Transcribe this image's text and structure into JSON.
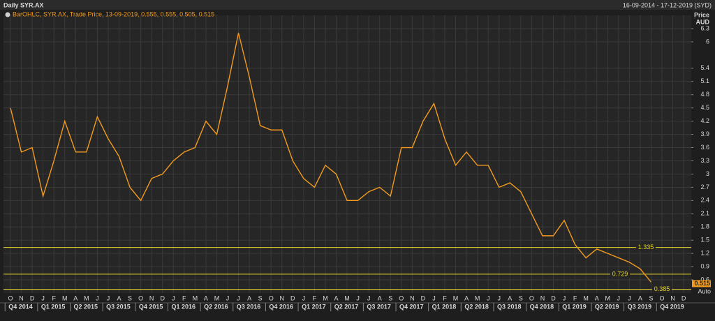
{
  "chart_data": {
    "type": "line",
    "title": "Daily SYR.AX",
    "date_range": "16-09-2014 - 17-12-2019 (SYD)",
    "legend_text": "BarOHLC, SYR.AX, Trade Price, 13-09-2019, 0.555, 0.555, 0.505, 0.515",
    "y_label": "Price",
    "y_unit": "AUD",
    "scale_mode": "Auto",
    "categories": [
      "O",
      "N",
      "D",
      "J",
      "F",
      "M",
      "A",
      "M",
      "J",
      "J",
      "A",
      "S",
      "O",
      "N",
      "D",
      "J",
      "F",
      "M",
      "A",
      "M",
      "J",
      "J",
      "A",
      "S",
      "O",
      "N",
      "D",
      "J",
      "F",
      "M",
      "A",
      "M",
      "J",
      "J",
      "A",
      "S",
      "O",
      "N",
      "D",
      "J",
      "F",
      "M",
      "A",
      "M",
      "J",
      "J",
      "A",
      "S",
      "O",
      "N",
      "D",
      "J",
      "F",
      "M",
      "A",
      "M",
      "J",
      "J",
      "A",
      "S",
      "O",
      "N",
      "D"
    ],
    "quarters": [
      "Q4 2014",
      "Q1 2015",
      "Q2 2015",
      "Q3 2015",
      "Q4 2015",
      "Q1 2016",
      "Q2 2016",
      "Q3 2016",
      "Q4 2016",
      "Q1 2017",
      "Q2 2017",
      "Q3 2017",
      "Q4 2017",
      "Q1 2018",
      "Q2 2018",
      "Q3 2018",
      "Q4 2018",
      "Q1 2019",
      "Q2 2019",
      "Q3 2019",
      "Q4 2019"
    ],
    "series": [
      {
        "color": "#f29b1f",
        "values": [
          4.5,
          3.5,
          3.6,
          2.5,
          3.3,
          4.2,
          3.5,
          3.5,
          4.3,
          3.8,
          3.4,
          2.7,
          2.4,
          2.9,
          3.0,
          3.3,
          3.5,
          3.6,
          4.2,
          3.9,
          5.0,
          6.2,
          5.2,
          4.1,
          4.0,
          4.0,
          3.3,
          2.9,
          2.7,
          3.2,
          3.0,
          2.4,
          2.4,
          2.6,
          2.7,
          2.5,
          3.6,
          3.6,
          4.2,
          4.6,
          3.8,
          3.2,
          3.5,
          3.2,
          3.2,
          2.7,
          2.8,
          2.6,
          2.1,
          1.6,
          1.6,
          1.95,
          1.4,
          1.1,
          1.3,
          1.2,
          1.1,
          1.0,
          0.85,
          0.55,
          null,
          null,
          null
        ]
      }
    ],
    "ylim": [
      0.3,
      6.6
    ],
    "yticks": [
      0.6,
      0.9,
      1.2,
      1.5,
      1.8,
      2.1,
      2.4,
      2.7,
      3,
      3.3,
      3.6,
      3.9,
      4.2,
      4.5,
      4.8,
      5.1,
      5.4,
      6,
      6.3
    ],
    "grid": true,
    "hlines": [
      {
        "value": 1.335,
        "color": "#e8d62a"
      },
      {
        "value": 0.729,
        "color": "#e8d62a"
      },
      {
        "value": 0.385,
        "color": "#e8d62a"
      }
    ],
    "last_price": 0.515
  }
}
